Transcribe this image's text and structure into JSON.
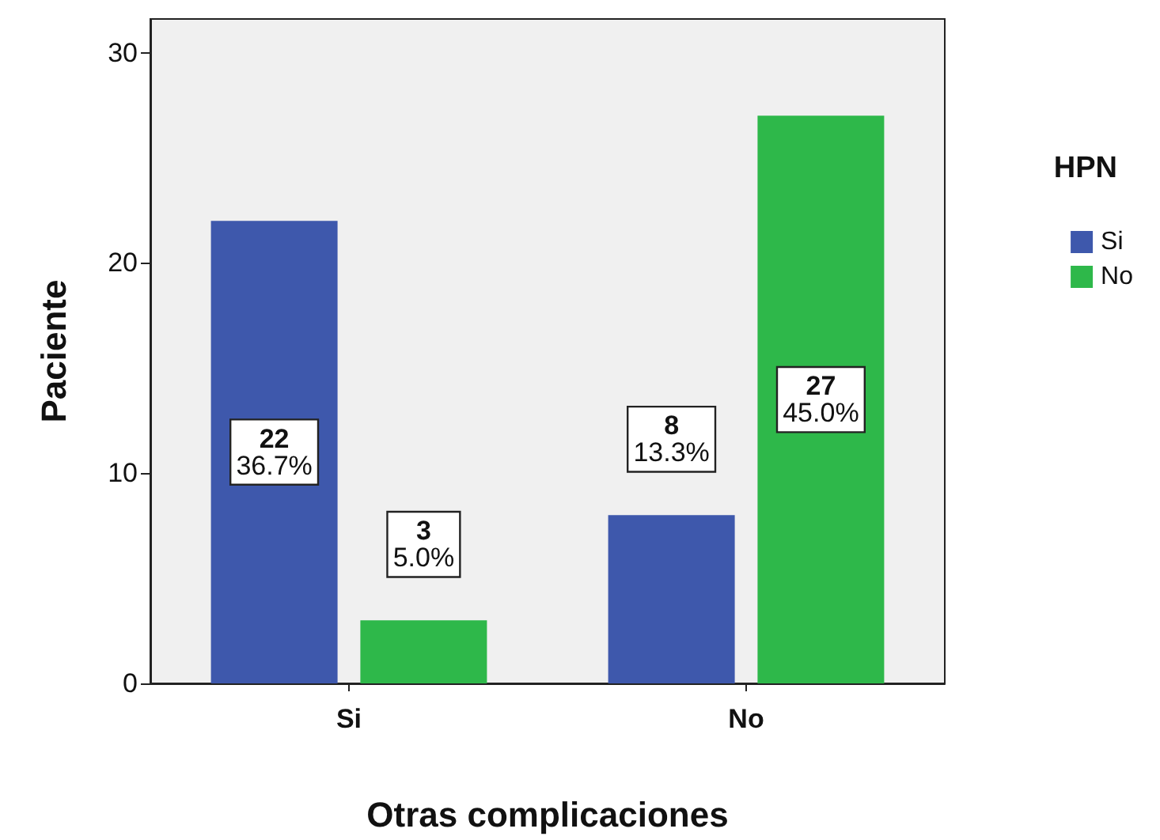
{
  "chart_data": {
    "type": "bar",
    "xlabel": "Otras complicaciones",
    "ylabel": "Paciente",
    "legend_title": "HPN",
    "categories": [
      "Si",
      "No"
    ],
    "series": [
      {
        "name": "Si",
        "color": "#3e58ac",
        "values": [
          22,
          8
        ],
        "value_labels": [
          "22\n36.7%",
          "8\n13.3%"
        ]
      },
      {
        "name": "No",
        "color": "#2eb84a",
        "values": [
          3,
          27
        ],
        "value_labels": [
          "3\n5.0%",
          "27\n45.0%"
        ]
      }
    ],
    "ylim": [
      0,
      31.6
    ],
    "yticks": [
      0,
      10,
      20,
      30
    ],
    "grid": false,
    "legend": "right"
  }
}
